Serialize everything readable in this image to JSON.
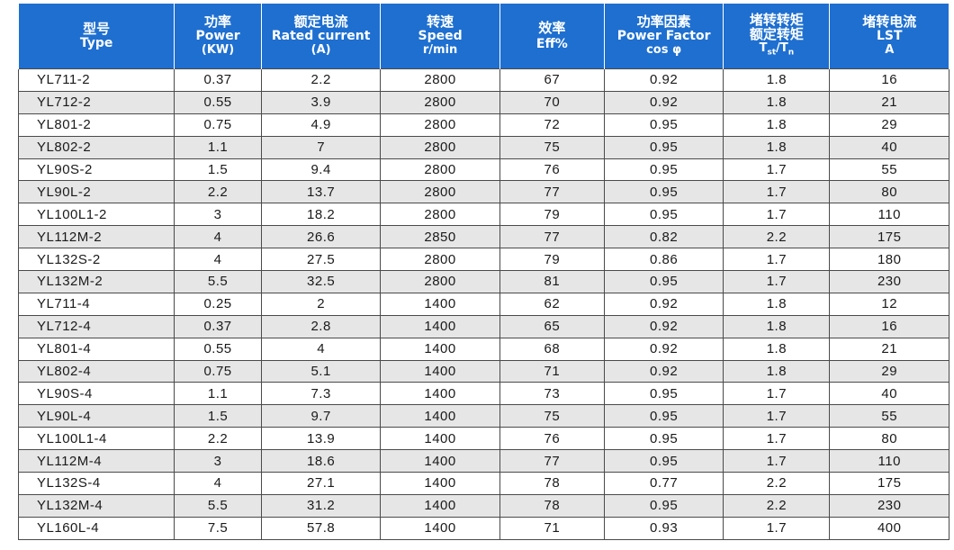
{
  "headers": [
    {
      "zh": "型号",
      "en": "Type",
      "unit": ""
    },
    {
      "zh": "功率",
      "en": "Power",
      "unit": "(KW)"
    },
    {
      "zh": "额定电流",
      "en": "Rated current",
      "unit": "(A)"
    },
    {
      "zh": "转速",
      "en": "Speed",
      "unit": "r/min"
    },
    {
      "zh": "效率",
      "en": "Eff%",
      "unit": ""
    },
    {
      "zh": "功率因素",
      "en": "Power Factor",
      "unit": "cos φ"
    },
    {
      "zh": "堵转转矩",
      "en": "额定转矩",
      "unit_main": "T",
      "unit_sub1": "st",
      "unit_mid": "/T",
      "unit_sub2": "n"
    },
    {
      "zh": "堵转电流",
      "en": "LST",
      "unit": "A"
    }
  ],
  "rows": [
    [
      "YL711-2",
      "0.37",
      "2.2",
      "2800",
      "67",
      "0.92",
      "1.8",
      "16"
    ],
    [
      "YL712-2",
      "0.55",
      "3.9",
      "2800",
      "70",
      "0.92",
      "1.8",
      "21"
    ],
    [
      "YL801-2",
      "0.75",
      "4.9",
      "2800",
      "72",
      "0.95",
      "1.8",
      "29"
    ],
    [
      "YL802-2",
      "1.1",
      "7",
      "2800",
      "75",
      "0.95",
      "1.8",
      "40"
    ],
    [
      "YL90S-2",
      "1.5",
      "9.4",
      "2800",
      "76",
      "0.95",
      "1.7",
      "55"
    ],
    [
      "YL90L-2",
      "2.2",
      "13.7",
      "2800",
      "77",
      "0.95",
      "1.7",
      "80"
    ],
    [
      "YL100L1-2",
      "3",
      "18.2",
      "2800",
      "79",
      "0.95",
      "1.7",
      "110"
    ],
    [
      "YL112M-2",
      "4",
      "26.6",
      "2850",
      "77",
      "0.82",
      "2.2",
      "175"
    ],
    [
      "YL132S-2",
      "4",
      "27.5",
      "2800",
      "79",
      "0.86",
      "1.7",
      "180"
    ],
    [
      "YL132M-2",
      "5.5",
      "32.5",
      "2800",
      "81",
      "0.95",
      "1.7",
      "230"
    ],
    [
      "YL711-4",
      "0.25",
      "2",
      "1400",
      "62",
      "0.92",
      "1.8",
      "12"
    ],
    [
      "YL712-4",
      "0.37",
      "2.8",
      "1400",
      "65",
      "0.92",
      "1.8",
      "16"
    ],
    [
      "YL801-4",
      "0.55",
      "4",
      "1400",
      "68",
      "0.92",
      "1.8",
      "21"
    ],
    [
      "YL802-4",
      "0.75",
      "5.1",
      "1400",
      "71",
      "0.92",
      "1.8",
      "29"
    ],
    [
      "YL90S-4",
      "1.1",
      "7.3",
      "1400",
      "73",
      "0.95",
      "1.7",
      "40"
    ],
    [
      "YL90L-4",
      "1.5",
      "9.7",
      "1400",
      "75",
      "0.95",
      "1.7",
      "55"
    ],
    [
      "YL100L1-4",
      "2.2",
      "13.9",
      "1400",
      "76",
      "0.95",
      "1.7",
      "80"
    ],
    [
      "YL112M-4",
      "3",
      "18.6",
      "1400",
      "77",
      "0.95",
      "1.7",
      "110"
    ],
    [
      "YL132S-4",
      "4",
      "27.1",
      "1400",
      "78",
      "0.77",
      "2.2",
      "175"
    ],
    [
      "YL132M-4",
      "5.5",
      "31.2",
      "1400",
      "78",
      "0.95",
      "2.2",
      "230"
    ],
    [
      "YL160L-4",
      "7.5",
      "57.8",
      "1400",
      "71",
      "0.93",
      "1.7",
      "400"
    ]
  ]
}
